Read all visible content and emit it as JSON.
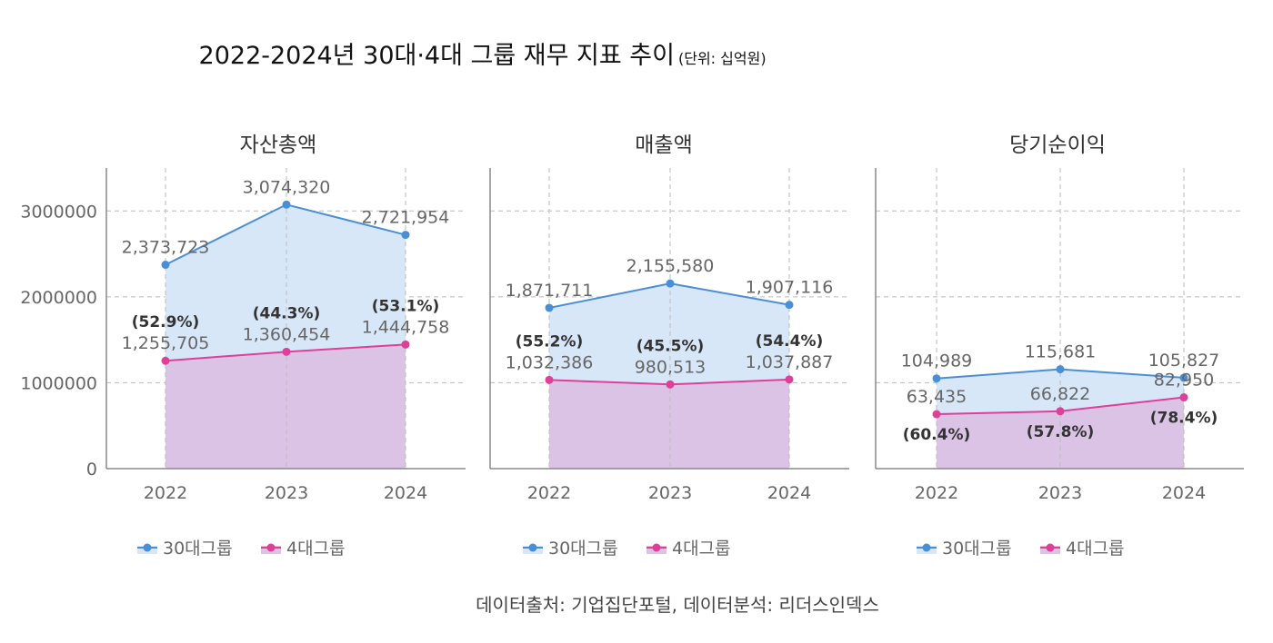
{
  "title": "2022-2024년 30대·4대 그룹 재무 지표 추이",
  "unit": "(단위: 십억원)",
  "source": "데이터출처: 기업집단포털, 데이터분석: 리더스인덱스",
  "colors": {
    "group30": "#4a8fd6",
    "group4": "#de3f98",
    "fill30": "#d8e7f8",
    "fill4": "#dbc3e5",
    "grid": "#bbbbbb",
    "axis": "#888888"
  },
  "chart_data": [
    {
      "type": "area",
      "title": "자산총액",
      "categories": [
        "2022",
        "2023",
        "2024"
      ],
      "ylim": [
        0,
        3500000
      ],
      "yticks": [
        "0",
        "1000000",
        "2000000",
        "3000000"
      ],
      "ytick_values": [
        0,
        1000000,
        2000000,
        3000000
      ],
      "show_ytick_labels": true,
      "grid": true,
      "legend": "bottom",
      "series": [
        {
          "name": "30대그룹",
          "values": [
            2373723,
            3074320,
            2721954
          ],
          "labels": [
            "2,373,723",
            "3,074,320",
            "2,721,954"
          ]
        },
        {
          "name": "4대그룹",
          "values": [
            1255705,
            1360454,
            1444758
          ],
          "labels": [
            "1,255,705",
            "1,360,454",
            "1,444,758"
          ],
          "share_labels": [
            "(52.9%)",
            "(44.3%)",
            "(53.1%)"
          ]
        }
      ]
    },
    {
      "type": "area",
      "title": "매출액",
      "categories": [
        "2022",
        "2023",
        "2024"
      ],
      "ylim": [
        0,
        3500000
      ],
      "ytick_values": [
        0,
        1000000,
        2000000,
        3000000
      ],
      "show_ytick_labels": false,
      "grid": true,
      "legend": "bottom",
      "series": [
        {
          "name": "30대그룹",
          "values": [
            1871711,
            2155580,
            1907116
          ],
          "labels": [
            "1,871,711",
            "2,155,580",
            "1,907,116"
          ]
        },
        {
          "name": "4대그룹",
          "values": [
            1032386,
            980513,
            1037887
          ],
          "labels": [
            "1,032,386",
            "980,513",
            "1,037,887"
          ],
          "share_labels": [
            "(55.2%)",
            "(45.5%)",
            "(54.4%)"
          ]
        }
      ]
    },
    {
      "type": "area",
      "title": "당기순이익",
      "categories": [
        "2022",
        "2023",
        "2024"
      ],
      "ylim": [
        0,
        350000
      ],
      "ytick_values": [
        0,
        100000,
        200000,
        300000
      ],
      "show_ytick_labels": false,
      "grid": true,
      "legend": "bottom",
      "series": [
        {
          "name": "30대그룹",
          "values": [
            104989,
            115681,
            105827
          ],
          "labels": [
            "104,989",
            "115,681",
            "105,827"
          ]
        },
        {
          "name": "4대그룹",
          "values": [
            63435,
            66822,
            82950
          ],
          "labels": [
            "63,435",
            "66,822",
            "82,950"
          ],
          "share_labels": [
            "(60.4%)",
            "(57.8%)",
            "(78.4%)"
          ]
        }
      ]
    }
  ]
}
